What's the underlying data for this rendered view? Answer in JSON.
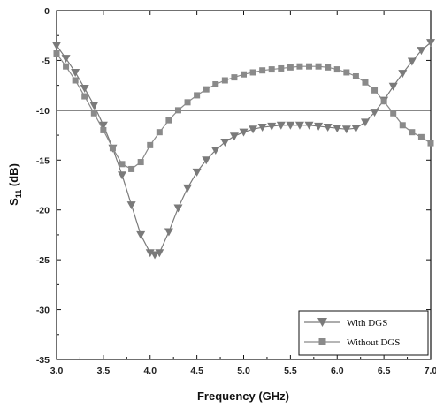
{
  "chart_data": {
    "type": "line",
    "xlabel": "Frequency (GHz)",
    "ylabel_main": "S",
    "ylabel_sub": "11",
    "ylabel_unit": " (dB)",
    "xlim": [
      3.0,
      7.0
    ],
    "ylim": [
      -35,
      0
    ],
    "xticks": [
      "3.0",
      "3.5",
      "4.0",
      "4.5",
      "5.0",
      "5.5",
      "6.0",
      "6.5",
      "7.0"
    ],
    "yticks": [
      "0",
      "-5",
      "-10",
      "-15",
      "-20",
      "-25",
      "-30",
      "-35"
    ],
    "reference_line": -10,
    "legend_position": "bottom-right",
    "series": [
      {
        "name": "With DGS",
        "marker": "triangle-down",
        "color": "#7a7a7a",
        "x": [
          3.0,
          3.1,
          3.2,
          3.3,
          3.4,
          3.5,
          3.6,
          3.7,
          3.8,
          3.9,
          4.0,
          4.05,
          4.1,
          4.2,
          4.3,
          4.4,
          4.5,
          4.6,
          4.7,
          4.8,
          4.9,
          5.0,
          5.1,
          5.2,
          5.3,
          5.4,
          5.5,
          5.6,
          5.7,
          5.8,
          5.9,
          6.0,
          6.1,
          6.2,
          6.3,
          6.4,
          6.5,
          6.6,
          6.7,
          6.8,
          6.9,
          7.0
        ],
        "y": [
          -3.5,
          -4.8,
          -6.2,
          -7.8,
          -9.5,
          -11.5,
          -13.8,
          -16.5,
          -19.5,
          -22.5,
          -24.3,
          -24.5,
          -24.3,
          -22.2,
          -19.8,
          -17.8,
          -16.2,
          -15.0,
          -14.0,
          -13.2,
          -12.6,
          -12.2,
          -11.9,
          -11.7,
          -11.6,
          -11.5,
          -11.5,
          -11.5,
          -11.5,
          -11.6,
          -11.7,
          -11.8,
          -11.9,
          -11.8,
          -11.2,
          -10.2,
          -9.0,
          -7.6,
          -6.3,
          -5.1,
          -4.0,
          -3.2
        ]
      },
      {
        "name": "Without DGS",
        "marker": "square",
        "color": "#8a8a8a",
        "x": [
          3.0,
          3.1,
          3.2,
          3.3,
          3.4,
          3.5,
          3.6,
          3.7,
          3.8,
          3.9,
          4.0,
          4.1,
          4.2,
          4.3,
          4.4,
          4.5,
          4.6,
          4.7,
          4.8,
          4.9,
          5.0,
          5.1,
          5.2,
          5.3,
          5.4,
          5.5,
          5.6,
          5.7,
          5.8,
          5.9,
          6.0,
          6.1,
          6.2,
          6.3,
          6.4,
          6.5,
          6.6,
          6.7,
          6.8,
          6.9,
          7.0
        ],
        "y": [
          -4.3,
          -5.6,
          -7.0,
          -8.6,
          -10.3,
          -12.0,
          -13.8,
          -15.4,
          -15.9,
          -15.2,
          -13.5,
          -12.2,
          -11.0,
          -10.0,
          -9.2,
          -8.5,
          -7.9,
          -7.4,
          -7.0,
          -6.7,
          -6.4,
          -6.2,
          -6.0,
          -5.9,
          -5.8,
          -5.7,
          -5.6,
          -5.6,
          -5.6,
          -5.7,
          -5.9,
          -6.2,
          -6.6,
          -7.2,
          -8.0,
          -9.1,
          -10.3,
          -11.5,
          -12.2,
          -12.7,
          -13.3
        ]
      }
    ]
  }
}
